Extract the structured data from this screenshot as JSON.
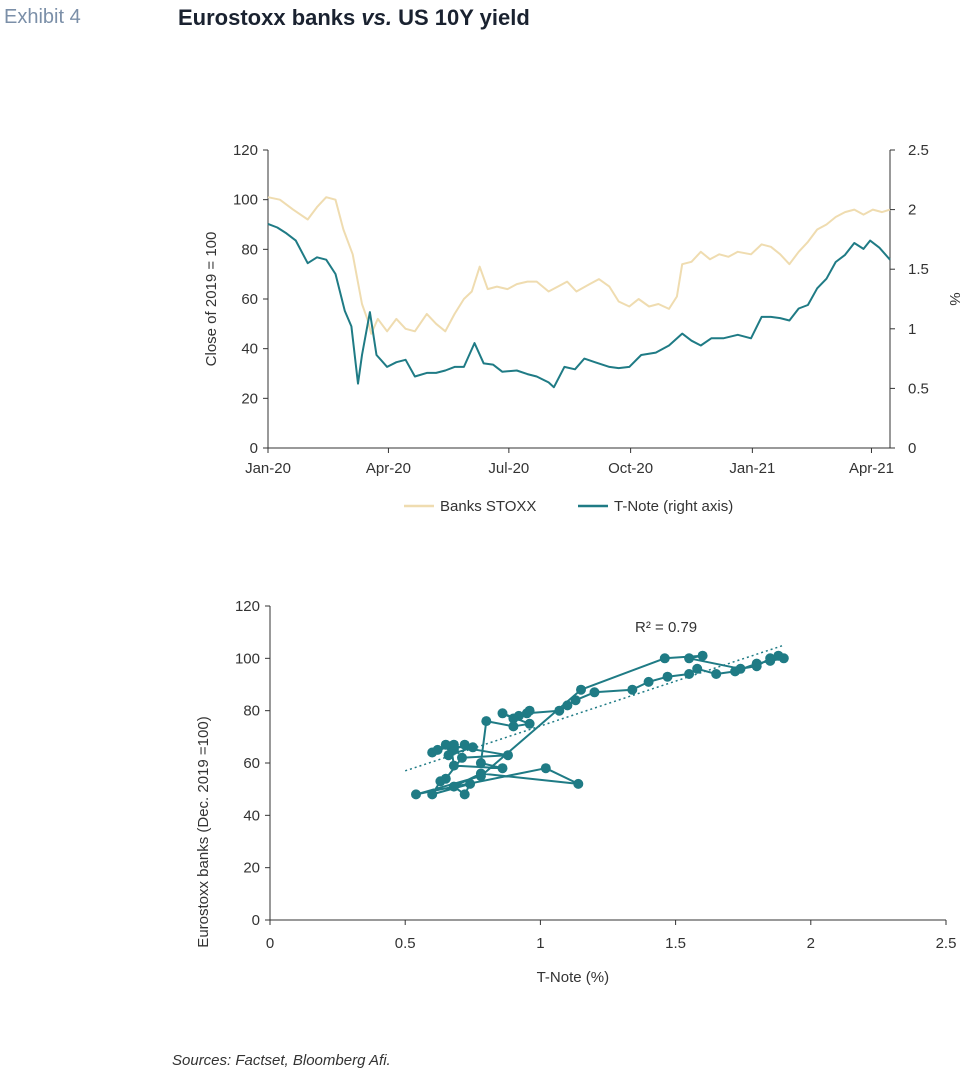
{
  "exhibit_label": "Exhibit 4",
  "title": {
    "part1": "Eurostoxx banks ",
    "vs": "vs.",
    "part2": " US 10Y yield"
  },
  "sources": "Sources: Factset, Bloomberg Afi.",
  "colors": {
    "banks": "#efdcb0",
    "tnote": "#1f7b85",
    "axis": "#333333"
  },
  "chart_data": [
    {
      "type": "line",
      "ylabel": "Close of 2019 = 100",
      "y2label": "%",
      "ylim": [
        0,
        120
      ],
      "y2lim": [
        0,
        2.5
      ],
      "xlim": [
        "2020-01-01",
        "2021-04-15"
      ],
      "xticks": [
        {
          "date": "2020-01-01",
          "label": "Jan-20"
        },
        {
          "date": "2020-04-01",
          "label": "Apr-20"
        },
        {
          "date": "2020-07-01",
          "label": "Jul-20"
        },
        {
          "date": "2020-10-01",
          "label": "Oct-20"
        },
        {
          "date": "2021-01-01",
          "label": "Jan-21"
        },
        {
          "date": "2021-04-01",
          "label": "Apr-21"
        }
      ],
      "yticks": [
        "0",
        "20",
        "40",
        "60",
        "80",
        "100",
        "120"
      ],
      "y2ticks": [
        "0",
        "0.5",
        "1",
        "1.5",
        "2",
        "2.5"
      ],
      "legend_position": "bottom",
      "series": [
        {
          "name": "Banks STOXX",
          "axis": "left",
          "points": [
            [
              "2020-01-01",
              101
            ],
            [
              "2020-01-10",
              100
            ],
            [
              "2020-01-20",
              96
            ],
            [
              "2020-01-31",
              92
            ],
            [
              "2020-02-07",
              97
            ],
            [
              "2020-02-14",
              101
            ],
            [
              "2020-02-21",
              100
            ],
            [
              "2020-02-27",
              88
            ],
            [
              "2020-03-05",
              78
            ],
            [
              "2020-03-12",
              58
            ],
            [
              "2020-03-16",
              52
            ],
            [
              "2020-03-19",
              46
            ],
            [
              "2020-03-24",
              52
            ],
            [
              "2020-03-31",
              47
            ],
            [
              "2020-04-07",
              52
            ],
            [
              "2020-04-14",
              48
            ],
            [
              "2020-04-21",
              47
            ],
            [
              "2020-04-30",
              54
            ],
            [
              "2020-05-07",
              50
            ],
            [
              "2020-05-14",
              47
            ],
            [
              "2020-05-21",
              54
            ],
            [
              "2020-05-28",
              60
            ],
            [
              "2020-06-03",
              63
            ],
            [
              "2020-06-09",
              73
            ],
            [
              "2020-06-15",
              64
            ],
            [
              "2020-06-22",
              65
            ],
            [
              "2020-06-30",
              64
            ],
            [
              "2020-07-07",
              66
            ],
            [
              "2020-07-15",
              67
            ],
            [
              "2020-07-22",
              67
            ],
            [
              "2020-07-31",
              63
            ],
            [
              "2020-08-07",
              65
            ],
            [
              "2020-08-14",
              67
            ],
            [
              "2020-08-21",
              63
            ],
            [
              "2020-08-31",
              66
            ],
            [
              "2020-09-07",
              68
            ],
            [
              "2020-09-15",
              65
            ],
            [
              "2020-09-22",
              59
            ],
            [
              "2020-09-30",
              57
            ],
            [
              "2020-10-07",
              60
            ],
            [
              "2020-10-15",
              57
            ],
            [
              "2020-10-22",
              58
            ],
            [
              "2020-10-30",
              56
            ],
            [
              "2020-11-05",
              61
            ],
            [
              "2020-11-09",
              74
            ],
            [
              "2020-11-16",
              75
            ],
            [
              "2020-11-23",
              79
            ],
            [
              "2020-11-30",
              76
            ],
            [
              "2020-12-07",
              78
            ],
            [
              "2020-12-14",
              77
            ],
            [
              "2020-12-21",
              79
            ],
            [
              "2020-12-31",
              78
            ],
            [
              "2021-01-08",
              82
            ],
            [
              "2021-01-15",
              81
            ],
            [
              "2021-01-22",
              78
            ],
            [
              "2021-01-29",
              74
            ],
            [
              "2021-02-05",
              79
            ],
            [
              "2021-02-12",
              83
            ],
            [
              "2021-02-19",
              88
            ],
            [
              "2021-02-26",
              90
            ],
            [
              "2021-03-05",
              93
            ],
            [
              "2021-03-12",
              95
            ],
            [
              "2021-03-19",
              96
            ],
            [
              "2021-03-26",
              94
            ],
            [
              "2021-04-02",
              96
            ],
            [
              "2021-04-09",
              95
            ],
            [
              "2021-04-15",
              96
            ]
          ]
        },
        {
          "name": "T-Note (right axis)",
          "axis": "right",
          "points": [
            [
              "2020-01-01",
              1.88
            ],
            [
              "2020-01-08",
              1.85
            ],
            [
              "2020-01-15",
              1.8
            ],
            [
              "2020-01-22",
              1.74
            ],
            [
              "2020-01-31",
              1.55
            ],
            [
              "2020-02-07",
              1.6
            ],
            [
              "2020-02-14",
              1.58
            ],
            [
              "2020-02-21",
              1.46
            ],
            [
              "2020-02-28",
              1.15
            ],
            [
              "2020-03-04",
              1.02
            ],
            [
              "2020-03-09",
              0.54
            ],
            [
              "2020-03-12",
              0.78
            ],
            [
              "2020-03-18",
              1.14
            ],
            [
              "2020-03-23",
              0.78
            ],
            [
              "2020-03-31",
              0.68
            ],
            [
              "2020-04-07",
              0.72
            ],
            [
              "2020-04-14",
              0.74
            ],
            [
              "2020-04-21",
              0.6
            ],
            [
              "2020-04-30",
              0.63
            ],
            [
              "2020-05-07",
              0.63
            ],
            [
              "2020-05-14",
              0.65
            ],
            [
              "2020-05-21",
              0.68
            ],
            [
              "2020-05-28",
              0.68
            ],
            [
              "2020-06-05",
              0.88
            ],
            [
              "2020-06-12",
              0.71
            ],
            [
              "2020-06-19",
              0.7
            ],
            [
              "2020-06-26",
              0.64
            ],
            [
              "2020-07-07",
              0.65
            ],
            [
              "2020-07-15",
              0.62
            ],
            [
              "2020-07-22",
              0.6
            ],
            [
              "2020-07-31",
              0.55
            ],
            [
              "2020-08-04",
              0.51
            ],
            [
              "2020-08-12",
              0.68
            ],
            [
              "2020-08-20",
              0.66
            ],
            [
              "2020-08-27",
              0.75
            ],
            [
              "2020-09-04",
              0.72
            ],
            [
              "2020-09-15",
              0.68
            ],
            [
              "2020-09-22",
              0.67
            ],
            [
              "2020-09-30",
              0.68
            ],
            [
              "2020-10-09",
              0.78
            ],
            [
              "2020-10-20",
              0.8
            ],
            [
              "2020-10-30",
              0.86
            ],
            [
              "2020-11-09",
              0.96
            ],
            [
              "2020-11-16",
              0.9
            ],
            [
              "2020-11-23",
              0.86
            ],
            [
              "2020-12-01",
              0.92
            ],
            [
              "2020-12-10",
              0.92
            ],
            [
              "2020-12-21",
              0.95
            ],
            [
              "2020-12-31",
              0.92
            ],
            [
              "2021-01-08",
              1.1
            ],
            [
              "2021-01-15",
              1.1
            ],
            [
              "2021-01-22",
              1.09
            ],
            [
              "2021-01-29",
              1.07
            ],
            [
              "2021-02-05",
              1.17
            ],
            [
              "2021-02-12",
              1.2
            ],
            [
              "2021-02-19",
              1.34
            ],
            [
              "2021-02-26",
              1.42
            ],
            [
              "2021-03-05",
              1.56
            ],
            [
              "2021-03-12",
              1.62
            ],
            [
              "2021-03-19",
              1.72
            ],
            [
              "2021-03-26",
              1.67
            ],
            [
              "2021-03-31",
              1.74
            ],
            [
              "2021-04-07",
              1.68
            ],
            [
              "2021-04-15",
              1.58
            ]
          ]
        }
      ]
    },
    {
      "type": "scatter",
      "xlabel": "T-Note (%)",
      "ylabel": "Eurostoxx banks (Dec. 2019 =100)",
      "xlim": [
        0,
        2.5
      ],
      "ylim": [
        0,
        120
      ],
      "xticks": [
        "0",
        "0.5",
        "1",
        "1.5",
        "2",
        "2.5"
      ],
      "yticks": [
        "0",
        "20",
        "40",
        "60",
        "80",
        "100",
        "120"
      ],
      "annotation": "R² = 0.79",
      "trendline": {
        "x": [
          0.5,
          1.9
        ],
        "y": [
          57,
          105
        ],
        "style": "dotted"
      },
      "series": [
        {
          "points": [
            [
              1.9,
              100
            ],
            [
              1.85,
              99
            ],
            [
              1.8,
              98
            ],
            [
              1.72,
              95
            ],
            [
              1.65,
              94
            ],
            [
              1.58,
              96
            ],
            [
              1.55,
              94
            ],
            [
              1.47,
              93
            ],
            [
              1.4,
              91
            ],
            [
              1.34,
              88
            ],
            [
              1.2,
              87
            ],
            [
              1.13,
              84
            ],
            [
              1.1,
              82
            ],
            [
              1.07,
              80
            ],
            [
              0.95,
              79
            ],
            [
              0.92,
              78
            ],
            [
              0.96,
              80
            ],
            [
              0.9,
              77
            ],
            [
              0.86,
              79
            ],
            [
              0.96,
              75
            ],
            [
              0.9,
              74
            ],
            [
              0.8,
              76
            ],
            [
              0.78,
              60
            ],
            [
              0.86,
              58
            ],
            [
              0.68,
              59
            ],
            [
              0.67,
              66
            ],
            [
              0.68,
              65
            ],
            [
              0.72,
              67
            ],
            [
              0.75,
              66
            ],
            [
              0.66,
              63
            ],
            [
              0.68,
              67
            ],
            [
              0.6,
              64
            ],
            [
              0.62,
              65
            ],
            [
              0.65,
              67
            ],
            [
              0.88,
              63
            ],
            [
              0.71,
              62
            ],
            [
              0.65,
              54
            ],
            [
              0.63,
              53
            ],
            [
              0.6,
              48
            ],
            [
              0.74,
              52
            ],
            [
              0.72,
              48
            ],
            [
              0.68,
              51
            ],
            [
              0.78,
              56
            ],
            [
              1.14,
              52
            ],
            [
              1.02,
              58
            ],
            [
              0.54,
              48
            ],
            [
              0.78,
              55
            ],
            [
              1.15,
              88
            ],
            [
              1.46,
              100
            ],
            [
              1.6,
              101
            ],
            [
              1.55,
              100
            ],
            [
              1.74,
              96
            ],
            [
              1.8,
              97
            ],
            [
              1.85,
              100
            ],
            [
              1.88,
              101
            ]
          ]
        }
      ]
    }
  ]
}
